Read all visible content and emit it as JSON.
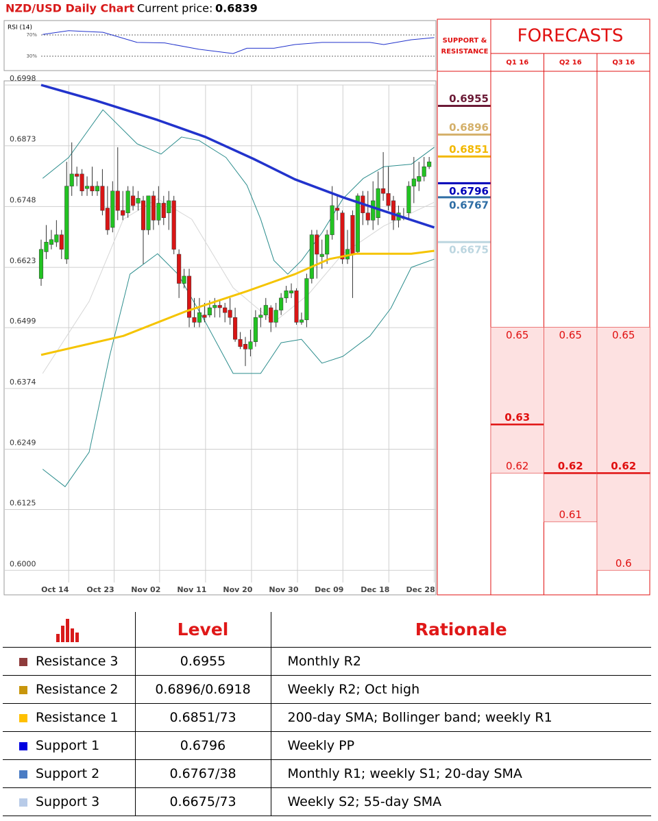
{
  "header": {
    "title": "NZD/USD Daily Chart",
    "price_label": "Current price:",
    "price": "0.6839"
  },
  "chart_data": [
    {
      "type": "candlestick",
      "label": "",
      "xlim": [
        -7.25,
        77.32
      ],
      "ylim": [
        0.5975,
        0.6998
      ],
      "yticks": [
        0.6998,
        0.6873,
        0.6748,
        0.6623,
        0.6499,
        0.6374,
        0.6249,
        0.6125,
        {
          "value": 0.6,
          "label": "0.6000"
        }
      ],
      "xticks": [
        {
          "value": 5.4,
          "label": "Oct 14"
        },
        {
          "value": 14.3,
          "label": "Oct 23"
        },
        {
          "value": 23.2,
          "label": "Nov 02"
        },
        {
          "value": 32.2,
          "label": "Nov 11"
        },
        {
          "value": 41.2,
          "label": "Nov 20"
        },
        {
          "value": 50.2,
          "label": "Nov 30"
        },
        {
          "value": 59.1,
          "label": "Dec 09"
        },
        {
          "value": 68.1,
          "label": "Dec 18"
        },
        {
          "value": 77.0,
          "label": "Dec 28"
        }
      ],
      "grid": true,
      "up_color": "#22c322",
      "down_color": "#d91515",
      "x": [
        0,
        1,
        2,
        3,
        4,
        5,
        6,
        7,
        8,
        9,
        10,
        11,
        12,
        13,
        14,
        15,
        16,
        17,
        18,
        19,
        20,
        21,
        22,
        23,
        24,
        25,
        26,
        27,
        28,
        29,
        30,
        31,
        32,
        33,
        34,
        35,
        36,
        37,
        38,
        39,
        40,
        41,
        42,
        43,
        44,
        45,
        46,
        47,
        48,
        49,
        50,
        51,
        52,
        53,
        54,
        55,
        56,
        57,
        58,
        59,
        60,
        61,
        62,
        63,
        64,
        65,
        66,
        67,
        68,
        69,
        70,
        71,
        72,
        73,
        74,
        75,
        76
      ],
      "open": [
        0.66,
        0.6655,
        0.667,
        0.6675,
        0.669,
        0.664,
        0.679,
        0.6815,
        0.6815,
        0.6785,
        0.679,
        0.678,
        0.679,
        0.6745,
        0.6705,
        0.678,
        0.674,
        0.6735,
        0.677,
        0.6755,
        0.676,
        0.67,
        0.677,
        0.672,
        0.6755,
        0.6735,
        0.676,
        0.665,
        0.659,
        0.6605,
        0.652,
        0.651,
        0.6525,
        0.6525,
        0.654,
        0.6545,
        0.654,
        0.6535,
        0.652,
        0.6475,
        0.6465,
        0.6455,
        0.647,
        0.652,
        0.6525,
        0.654,
        0.651,
        0.6535,
        0.656,
        0.657,
        0.6575,
        0.651,
        0.6515,
        0.66,
        0.669,
        0.6645,
        0.665,
        0.669,
        0.6745,
        0.6735,
        0.664,
        0.673,
        0.6655,
        0.677,
        0.6735,
        0.672,
        0.6725,
        0.6785,
        0.6775,
        0.676,
        0.672,
        0.6725,
        0.6735,
        0.679,
        0.68,
        0.681,
        0.683
      ],
      "high": [
        0.668,
        0.671,
        0.67,
        0.672,
        0.67,
        0.684,
        0.688,
        0.683,
        0.6825,
        0.681,
        0.683,
        0.68,
        0.6825,
        0.679,
        0.68,
        0.687,
        0.678,
        0.679,
        0.679,
        0.678,
        0.677,
        0.677,
        0.678,
        0.679,
        0.677,
        0.678,
        0.677,
        0.666,
        0.662,
        0.662,
        0.656,
        0.656,
        0.655,
        0.6555,
        0.656,
        0.6555,
        0.655,
        0.656,
        0.654,
        0.649,
        0.648,
        0.6495,
        0.6535,
        0.654,
        0.656,
        0.6545,
        0.655,
        0.657,
        0.6585,
        0.659,
        0.658,
        0.653,
        0.661,
        0.67,
        0.67,
        0.668,
        0.67,
        0.679,
        0.677,
        0.674,
        0.67,
        0.674,
        0.6775,
        0.678,
        0.678,
        0.68,
        0.682,
        0.686,
        0.683,
        0.677,
        0.675,
        0.6745,
        0.68,
        0.685,
        0.684,
        0.685,
        0.685
      ],
      "low": [
        0.6585,
        0.664,
        0.666,
        0.6665,
        0.664,
        0.663,
        0.677,
        0.679,
        0.677,
        0.677,
        0.677,
        0.677,
        0.673,
        0.669,
        0.6695,
        0.672,
        0.672,
        0.6725,
        0.674,
        0.674,
        0.663,
        0.669,
        0.67,
        0.671,
        0.671,
        0.67,
        0.665,
        0.656,
        0.658,
        0.65,
        0.65,
        0.65,
        0.651,
        0.652,
        0.652,
        0.652,
        0.651,
        0.6505,
        0.647,
        0.6455,
        0.642,
        0.644,
        0.646,
        0.65,
        0.6515,
        0.649,
        0.65,
        0.6525,
        0.655,
        0.656,
        0.6505,
        0.6505,
        0.65,
        0.659,
        0.66,
        0.662,
        0.663,
        0.668,
        0.672,
        0.663,
        0.663,
        0.656,
        0.665,
        0.671,
        0.671,
        0.67,
        0.671,
        0.676,
        0.674,
        0.67,
        0.6705,
        0.672,
        0.672,
        0.6755,
        0.678,
        0.68,
        0.6825
      ],
      "close": [
        0.666,
        0.6675,
        0.668,
        0.669,
        0.666,
        0.679,
        0.6815,
        0.681,
        0.678,
        0.679,
        0.678,
        0.679,
        0.674,
        0.67,
        0.678,
        0.674,
        0.673,
        0.678,
        0.675,
        0.6765,
        0.67,
        0.677,
        0.672,
        0.6755,
        0.6725,
        0.676,
        0.666,
        0.659,
        0.6605,
        0.652,
        0.651,
        0.653,
        0.652,
        0.654,
        0.6545,
        0.654,
        0.653,
        0.652,
        0.6475,
        0.646,
        0.6455,
        0.647,
        0.652,
        0.6525,
        0.6545,
        0.651,
        0.6535,
        0.656,
        0.6575,
        0.6575,
        0.651,
        0.6515,
        0.66,
        0.669,
        0.665,
        0.665,
        0.669,
        0.675,
        0.674,
        0.664,
        0.666,
        0.665,
        0.677,
        0.6735,
        0.672,
        0.676,
        0.6785,
        0.6775,
        0.675,
        0.672,
        0.6735,
        0.6725,
        0.679,
        0.6805,
        0.681,
        0.683,
        0.684
      ],
      "lines": [
        {
          "color": "#d6d6d6",
          "width": 1,
          "x": [
            0.3,
            9.4,
            16.1,
            22.8,
            29.5,
            37.6,
            45.6,
            52.3,
            59.1,
            67.1,
            77
          ],
          "values": [
            0.6405,
            0.6553,
            0.6722,
            0.6764,
            0.6722,
            0.6581,
            0.651,
            0.6567,
            0.6651,
            0.6708,
            0.6757
          ]
        },
        {
          "color": "#2a8c8c",
          "width": 1,
          "x": [
            0.3,
            5.4,
            12.1,
            18.8,
            23.5,
            27.5,
            30.9,
            36.2,
            40.3,
            43,
            45.6,
            48.3,
            51,
            55,
            59.1,
            63.1,
            67.1,
            72.5,
            77
          ],
          "values": [
            0.6806,
            0.6849,
            0.6947,
            0.6877,
            0.6856,
            0.6891,
            0.6884,
            0.6849,
            0.6792,
            0.6722,
            0.6637,
            0.6609,
            0.6637,
            0.6694,
            0.6764,
            0.6806,
            0.683,
            0.6835,
            0.687
          ]
        },
        {
          "color": "#2a8c8c",
          "width": 1,
          "x": [
            0.3,
            4.7,
            9.4,
            13.4,
            17.4,
            22.8,
            26.8,
            32.2,
            37.6,
            43,
            47,
            51,
            55,
            59.1,
            64.4,
            68.5,
            72.5,
            77
          ],
          "values": [
            0.6208,
            0.6172,
            0.6243,
            0.644,
            0.6609,
            0.6651,
            0.6609,
            0.651,
            0.6405,
            0.6405,
            0.6468,
            0.6475,
            0.6426,
            0.644,
            0.6482,
            0.6539,
            0.6623,
            0.664
          ]
        },
        {
          "color": "#f5c400",
          "width": 3,
          "x": [
            0,
            16.1,
            28.2,
            40.3,
            49.7,
            56.4,
            61.7,
            72.5,
            77
          ],
          "values": [
            0.6443,
            0.6482,
            0.6532,
            0.6574,
            0.6609,
            0.664,
            0.6651,
            0.6651,
            0.6657
          ]
        },
        {
          "color": "#2233cc",
          "width": 3.5,
          "x": [
            0,
            10.7,
            22.8,
            32.2,
            41.6,
            49.7,
            59.1,
            67.1,
            77
          ],
          "values": [
            0.6998,
            0.6966,
            0.6926,
            0.6891,
            0.6846,
            0.6804,
            0.6767,
            0.6739,
            0.6705
          ]
        }
      ],
      "levels_title": "SUPPORT & RESISTANCE",
      "levels": [
        {
          "value": 0.6955,
          "color": "#6b1a36"
        },
        {
          "value": 0.6896,
          "color": "#d4b06a"
        },
        {
          "value": 0.6851,
          "color": "#f2b800"
        },
        {
          "value": 0.6796,
          "color": "#0000b8"
        },
        {
          "value": 0.6767,
          "color": "#2f6ea5"
        },
        {
          "value": 0.6675,
          "color": "#bcd6e0"
        }
      ]
    },
    {
      "type": "line",
      "label": "RSI (14)",
      "xlim": [
        -7.25,
        77.32
      ],
      "ylim": [
        2.9,
        97.1
      ],
      "yticks": [
        {
          "value": 70,
          "label": "70%"
        },
        {
          "value": 30,
          "label": "30%"
        }
      ],
      "color": "#2233cc",
      "x": [
        0.3,
        5.4,
        12.1,
        18.8,
        24.2,
        30.9,
        37.6,
        40.3,
        45.6,
        49.7,
        55,
        59.1,
        64.4,
        67.1,
        72.5,
        77
      ],
      "values": [
        71,
        78,
        75,
        56,
        55,
        43,
        35,
        45,
        45,
        52,
        56,
        56,
        56,
        52,
        61,
        65
      ]
    }
  ],
  "forecasts": {
    "title": "FORECASTS",
    "quarters": [
      {
        "label": "Q1 16",
        "high": 0.65,
        "mid": 0.63,
        "low": 0.62
      },
      {
        "label": "Q2 16",
        "high": 0.65,
        "mid": 0.62,
        "low": 0.61
      },
      {
        "label": "Q3 16",
        "high": 0.65,
        "mid": 0.62,
        "low": 0.6
      }
    ]
  },
  "table": {
    "columns": [
      "Level",
      "Rationale"
    ],
    "rows": [
      {
        "name": "Resistance 3",
        "color": "#8e3b3b",
        "level": "0.6955",
        "rationale": "Monthly R2"
      },
      {
        "name": "Resistance 2",
        "color": "#c8960c",
        "level": "0.6896/0.6918",
        "rationale": "Weekly R2; Oct high"
      },
      {
        "name": "Resistance 1",
        "color": "#ffc000",
        "level": "0.6851/73",
        "rationale": "200-day SMA; Bollinger band; weekly R1"
      },
      {
        "name": "Support 1",
        "color": "#0000e0",
        "level": "0.6796",
        "rationale": "Weekly PP"
      },
      {
        "name": "Support 2",
        "color": "#4a7cc4",
        "level": "0.6767/38",
        "rationale": "Monthly R1; weekly S1; 20-day SMA"
      },
      {
        "name": "Support 3",
        "color": "#b8cbe8",
        "level": "0.6675/73",
        "rationale": "Weekly S2; 55-day SMA"
      }
    ]
  }
}
